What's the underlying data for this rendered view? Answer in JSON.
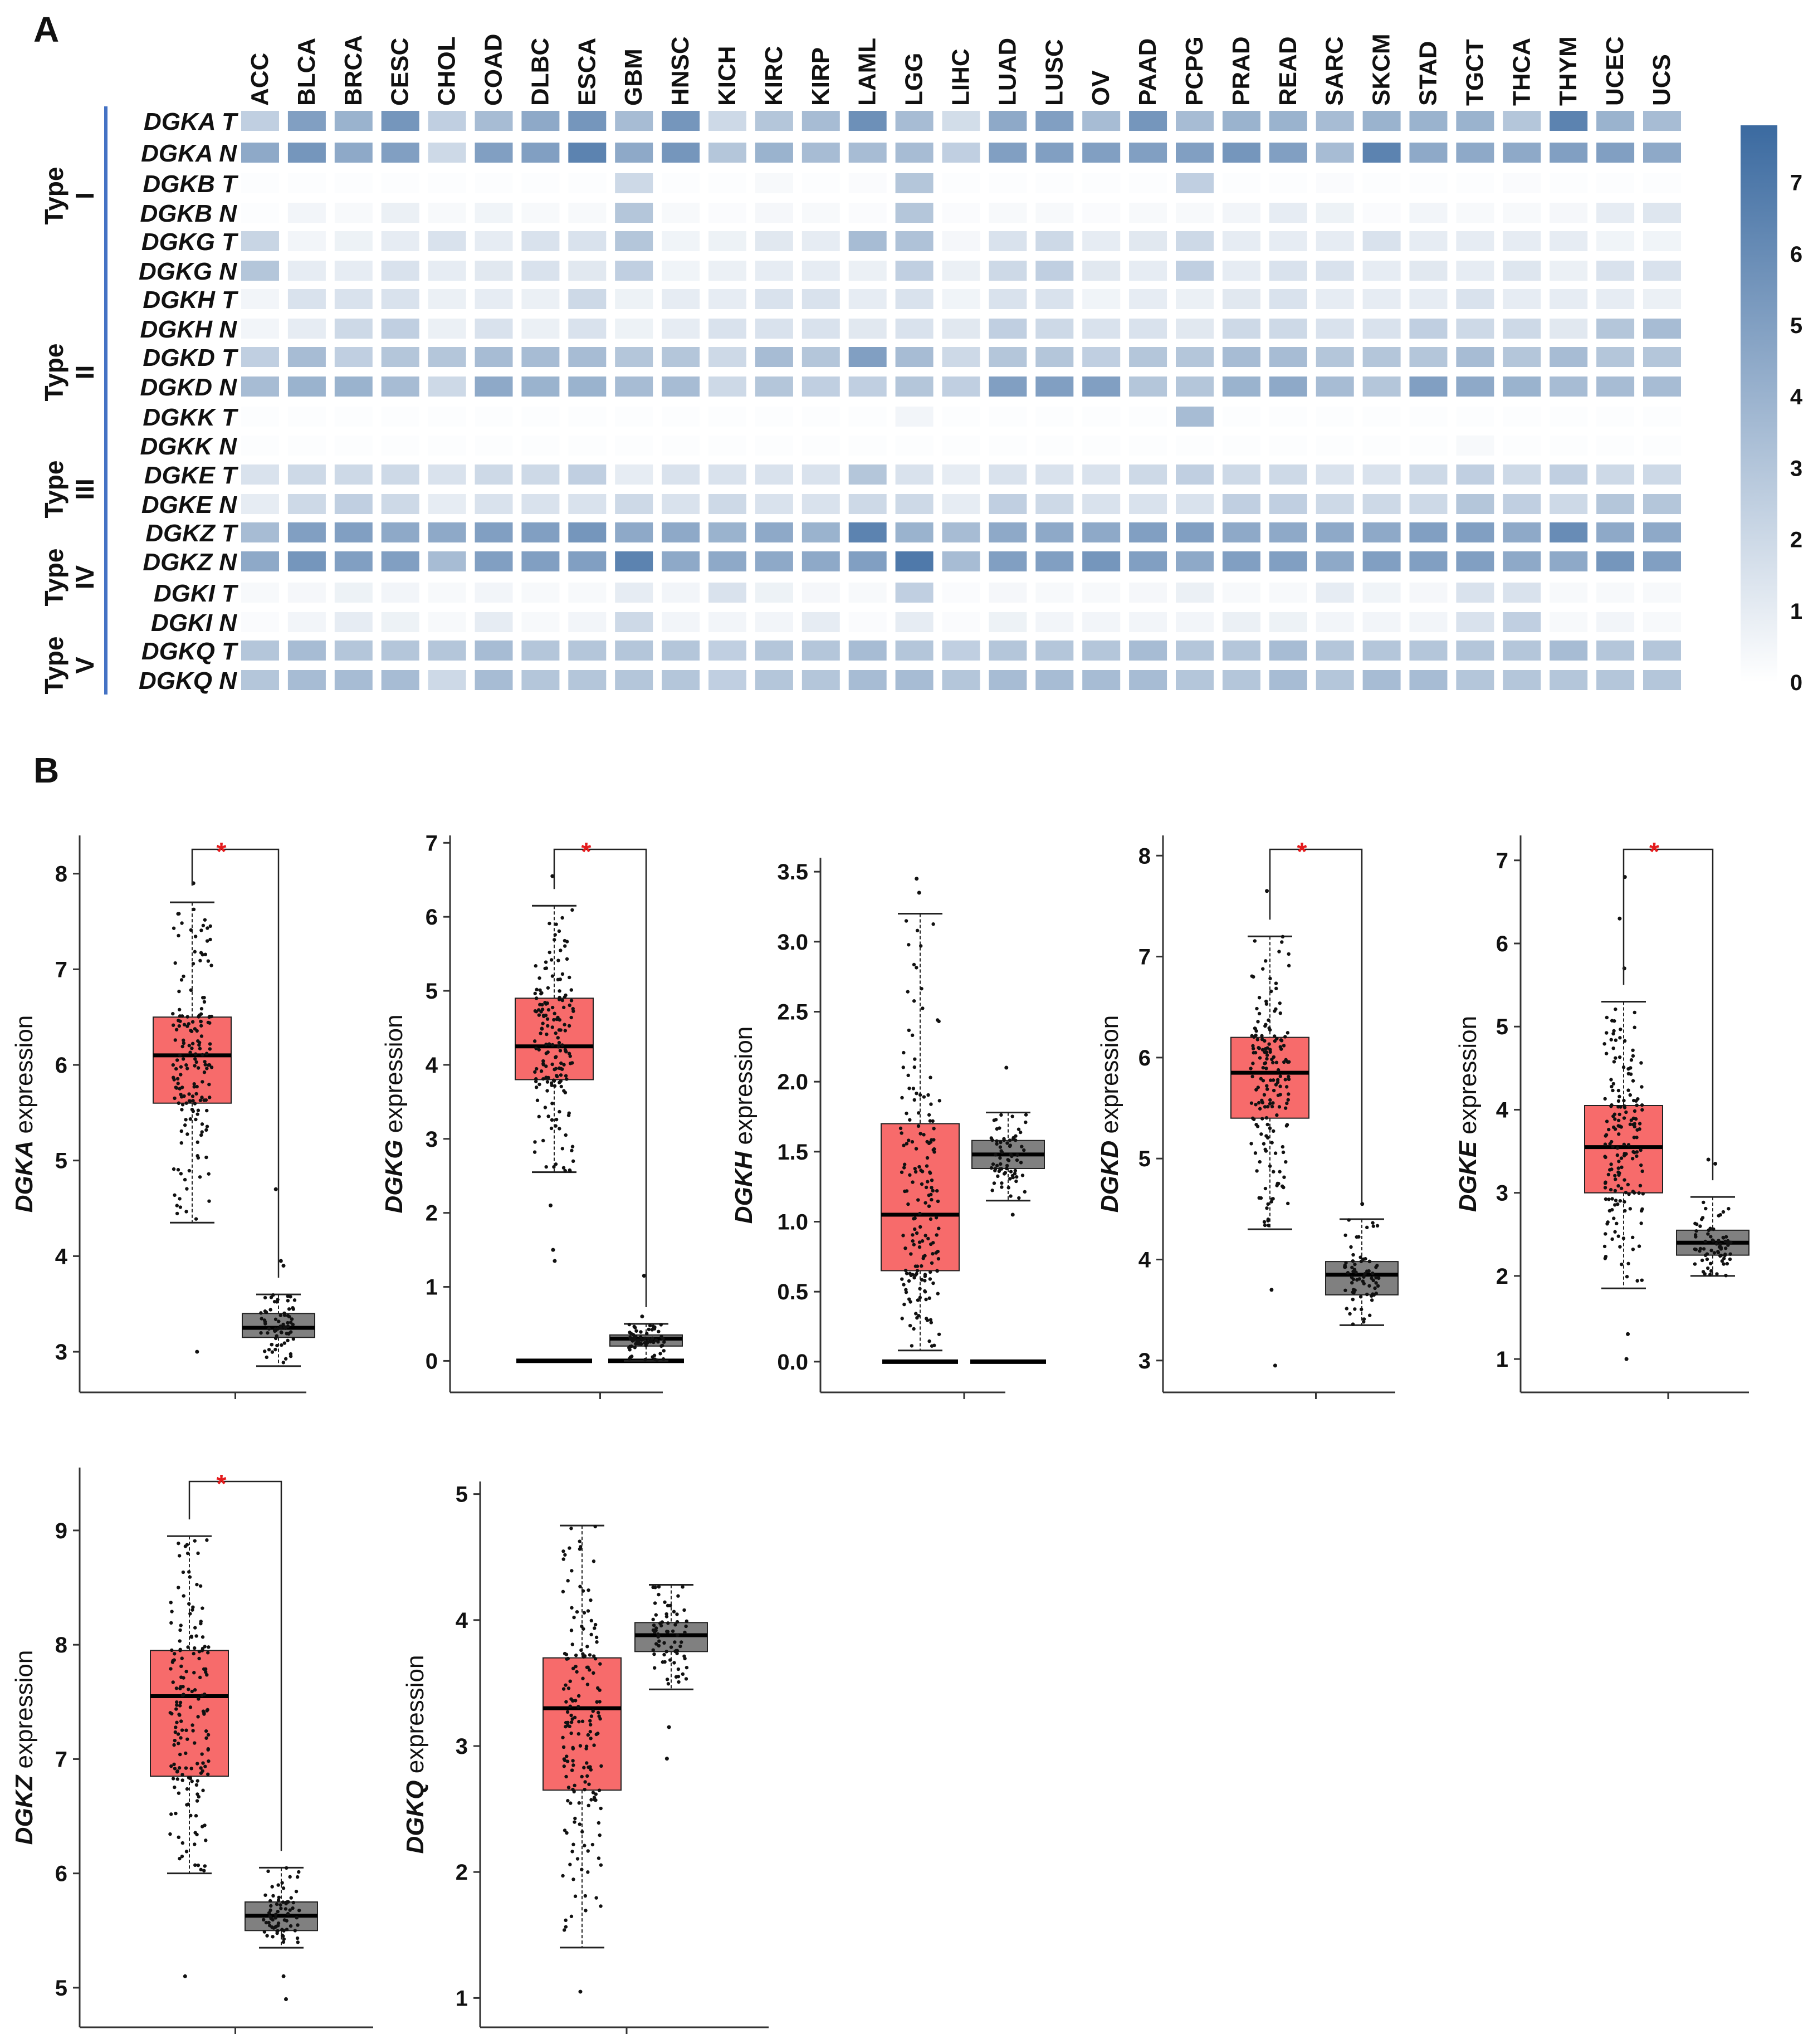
{
  "panels": {
    "a": "A",
    "b": "B"
  },
  "colors": {
    "heat_low": "#ffffff",
    "heat_high": "#3b6aa0",
    "highlight_label": "#e01010",
    "group_bar": "#4472c4",
    "tumor_box": "#f76b6b",
    "normal_box": "#808080",
    "star": "#e41a1c"
  },
  "chart_data": [
    {
      "type": "heatmap",
      "title": "",
      "columns": [
        "ACC",
        "BLCA",
        "BRCA",
        "CESC",
        "CHOL",
        "COAD",
        "DLBC",
        "ESCA",
        "GBM",
        "HNSC",
        "KICH",
        "KIRC",
        "KIRP",
        "LAML",
        "LGG",
        "LIHC",
        "LUAD",
        "LUSC",
        "OV",
        "PAAD",
        "PCPG",
        "PRAD",
        "READ",
        "SARC",
        "SKCM",
        "STAD",
        "TGCT",
        "THCA",
        "THYM",
        "UCEC",
        "UCS"
      ],
      "highlighted_column": "LAML",
      "rows": [
        "DGKA T",
        "DGKA N",
        "DGKB T",
        "DGKB N",
        "DGKG T",
        "DGKG N",
        "DGKH T",
        "DGKH N",
        "DGKD T",
        "DGKD N",
        "DGKK T",
        "DGKK N",
        "DGKE T",
        "DGKE N",
        "DGKZ T",
        "DGKZ N",
        "DGKI T",
        "DGKI N",
        "DGKQ T",
        "DGKQ N"
      ],
      "groups": [
        {
          "label": "Type",
          "numeral": "I",
          "rows": [
            "DGKA T",
            "DGKA N",
            "DGKB T",
            "DGKB N",
            "DGKG T",
            "DGKG N"
          ]
        },
        {
          "label": "Type",
          "numeral": "II",
          "rows": [
            "DGKH T",
            "DGKH N",
            "DGKD T",
            "DGKD N",
            "DGKK T",
            "DGKK N"
          ]
        },
        {
          "label": "Type",
          "numeral": "III",
          "rows": [
            "DGKE T",
            "DGKE N"
          ]
        },
        {
          "label": "Type",
          "numeral": "IV",
          "rows": [
            "DGKZ T",
            "DGKZ N",
            "DGKI T",
            "DGKI N"
          ]
        },
        {
          "label": "Type",
          "numeral": "V",
          "rows": [
            "DGKQ T",
            "DGKQ N"
          ]
        }
      ],
      "values": [
        [
          2.5,
          5.0,
          4.0,
          5.5,
          2.5,
          3.5,
          4.5,
          5.5,
          3.5,
          5.5,
          2.0,
          3.0,
          3.5,
          5.8,
          3.5,
          1.8,
          4.5,
          5.0,
          3.5,
          5.5,
          3.5,
          4.0,
          4.0,
          3.5,
          4.0,
          4.0,
          4.0,
          3.0,
          6.5,
          4.0,
          3.5
        ],
        [
          4.5,
          5.5,
          4.5,
          5.0,
          2.0,
          5.0,
          5.0,
          6.5,
          4.5,
          5.5,
          3.0,
          4.0,
          3.5,
          3.5,
          3.5,
          2.5,
          5.0,
          5.0,
          5.0,
          5.0,
          5.0,
          5.5,
          5.0,
          3.5,
          6.5,
          4.5,
          4.5,
          4.5,
          5.0,
          5.0,
          4.5
        ],
        [
          0.1,
          0.1,
          0.1,
          0.1,
          0.1,
          0.1,
          0.1,
          0.1,
          2.0,
          0.1,
          0.1,
          0.3,
          0.1,
          0.2,
          3.0,
          0.1,
          0.1,
          0.1,
          0.1,
          0.1,
          2.5,
          0.1,
          0.1,
          0.2,
          0.1,
          0.1,
          0.1,
          0.2,
          0.1,
          0.1,
          0.1
        ],
        [
          0.1,
          0.5,
          0.3,
          0.8,
          0.3,
          0.6,
          0.3,
          0.3,
          3.0,
          0.3,
          0.2,
          0.4,
          0.3,
          0.2,
          3.0,
          0.2,
          0.3,
          0.3,
          0.2,
          0.3,
          0.3,
          0.5,
          1.0,
          0.7,
          0.2,
          0.5,
          0.3,
          0.3,
          0.4,
          1.0,
          1.3
        ],
        [
          2.2,
          0.5,
          0.7,
          1.0,
          1.5,
          1.0,
          1.5,
          1.5,
          3.0,
          0.6,
          0.7,
          1.2,
          1.0,
          3.5,
          3.2,
          0.4,
          1.5,
          2.0,
          1.0,
          1.2,
          2.0,
          1.0,
          1.0,
          1.0,
          1.5,
          1.0,
          1.0,
          1.0,
          1.0,
          0.6,
          0.6
        ],
        [
          3.0,
          1.0,
          1.0,
          1.5,
          1.0,
          1.2,
          1.5,
          1.2,
          2.5,
          0.6,
          0.8,
          1.0,
          1.0,
          0.8,
          2.5,
          0.8,
          2.0,
          2.5,
          1.2,
          1.0,
          2.5,
          1.0,
          1.5,
          1.5,
          1.0,
          1.2,
          1.0,
          1.3,
          0.8,
          1.5,
          1.5
        ],
        [
          0.5,
          1.5,
          1.5,
          1.5,
          0.8,
          1.0,
          0.8,
          2.0,
          0.7,
          1.0,
          1.0,
          1.5,
          1.5,
          1.0,
          1.5,
          0.6,
          1.5,
          1.5,
          0.6,
          1.0,
          0.8,
          1.2,
          1.5,
          1.0,
          1.0,
          1.0,
          1.5,
          1.0,
          1.0,
          1.0,
          0.8
        ],
        [
          0.5,
          1.0,
          2.0,
          2.5,
          0.8,
          1.5,
          0.8,
          1.5,
          0.7,
          1.0,
          1.5,
          1.5,
          1.5,
          1.2,
          1.5,
          1.2,
          2.5,
          2.0,
          1.5,
          1.5,
          1.2,
          2.0,
          2.0,
          1.5,
          1.5,
          2.5,
          2.0,
          2.0,
          1.2,
          3.0,
          3.5
        ],
        [
          2.5,
          3.5,
          2.5,
          3.0,
          3.0,
          3.5,
          3.5,
          3.5,
          3.0,
          3.0,
          2.0,
          3.5,
          3.0,
          5.0,
          3.5,
          2.0,
          3.0,
          3.0,
          2.5,
          3.0,
          3.0,
          3.5,
          3.5,
          3.0,
          3.0,
          3.0,
          3.5,
          3.0,
          3.5,
          3.0,
          3.0
        ],
        [
          3.5,
          4.0,
          4.0,
          3.5,
          2.0,
          4.5,
          4.0,
          4.0,
          3.5,
          3.5,
          2.0,
          3.0,
          2.5,
          2.5,
          3.0,
          2.5,
          5.0,
          5.0,
          5.0,
          3.0,
          3.0,
          4.0,
          4.5,
          3.5,
          3.0,
          5.0,
          4.5,
          4.0,
          3.5,
          3.5,
          3.5
        ],
        [
          0.1,
          0.1,
          0.1,
          0.1,
          0.1,
          0.1,
          0.1,
          0.1,
          0.1,
          0.1,
          0.1,
          0.1,
          0.1,
          0.1,
          0.5,
          0.1,
          0.1,
          0.1,
          0.1,
          0.1,
          3.5,
          0.1,
          0.1,
          0.1,
          0.1,
          0.1,
          0.1,
          0.1,
          0.1,
          0.1,
          0.1
        ],
        [
          0.1,
          0.1,
          0.1,
          0.1,
          0.1,
          0.1,
          0.1,
          0.1,
          0.1,
          0.1,
          0.1,
          0.1,
          0.1,
          0.1,
          0.1,
          0.1,
          0.1,
          0.1,
          0.1,
          0.1,
          0.1,
          0.1,
          0.1,
          0.1,
          0.1,
          0.1,
          0.3,
          0.1,
          0.1,
          0.1,
          0.1
        ],
        [
          1.5,
          2.0,
          2.0,
          2.0,
          1.5,
          2.0,
          2.0,
          2.5,
          1.0,
          1.5,
          1.5,
          1.5,
          1.5,
          3.0,
          1.5,
          1.0,
          1.5,
          1.5,
          1.5,
          2.0,
          2.5,
          2.0,
          2.0,
          1.5,
          1.5,
          2.0,
          2.5,
          2.0,
          2.5,
          2.0,
          2.0
        ],
        [
          1.0,
          2.0,
          2.5,
          2.0,
          1.0,
          1.5,
          1.5,
          1.5,
          2.0,
          1.5,
          2.0,
          1.5,
          1.5,
          2.0,
          2.0,
          1.0,
          2.5,
          2.0,
          1.5,
          1.5,
          1.5,
          2.5,
          2.5,
          2.0,
          2.0,
          2.0,
          3.0,
          2.5,
          2.0,
          3.0,
          3.0
        ],
        [
          3.5,
          5.0,
          5.0,
          4.5,
          4.5,
          5.0,
          5.0,
          5.5,
          4.5,
          4.5,
          4.0,
          4.5,
          4.0,
          6.5,
          4.0,
          3.5,
          4.5,
          4.5,
          4.5,
          5.0,
          5.0,
          4.5,
          4.5,
          4.5,
          4.5,
          5.0,
          5.0,
          4.5,
          6.0,
          4.5,
          4.5
        ],
        [
          4.5,
          5.5,
          5.0,
          5.0,
          3.5,
          5.0,
          5.0,
          5.0,
          6.5,
          4.5,
          4.5,
          4.5,
          4.5,
          5.0,
          7.0,
          3.5,
          5.0,
          5.0,
          5.5,
          5.0,
          4.5,
          5.0,
          5.0,
          4.5,
          5.0,
          5.0,
          5.0,
          4.5,
          4.5,
          5.5,
          5.0
        ],
        [
          0.3,
          0.4,
          0.7,
          0.5,
          0.3,
          0.5,
          0.3,
          0.3,
          1.0,
          0.5,
          1.5,
          0.7,
          0.4,
          0.3,
          2.5,
          0.2,
          0.4,
          0.3,
          0.3,
          0.4,
          0.8,
          0.3,
          0.3,
          1.0,
          0.6,
          0.4,
          1.5,
          1.5,
          0.3,
          0.3,
          0.3
        ],
        [
          0.2,
          0.5,
          1.0,
          0.7,
          0.3,
          1.0,
          0.3,
          0.5,
          2.0,
          0.5,
          0.5,
          0.5,
          1.0,
          0.2,
          1.0,
          0.2,
          0.7,
          0.5,
          0.5,
          0.5,
          0.5,
          0.8,
          0.7,
          0.5,
          0.5,
          0.5,
          1.5,
          2.5,
          0.3,
          0.5,
          0.3
        ],
        [
          3.0,
          3.5,
          3.0,
          3.0,
          3.0,
          3.5,
          3.0,
          3.0,
          3.0,
          3.0,
          2.5,
          3.0,
          3.0,
          3.5,
          3.0,
          2.5,
          3.0,
          3.0,
          3.0,
          3.5,
          3.0,
          3.0,
          3.5,
          3.0,
          3.0,
          3.0,
          3.0,
          3.0,
          3.5,
          3.0,
          3.0
        ],
        [
          3.0,
          3.5,
          3.5,
          3.5,
          2.0,
          3.5,
          3.0,
          3.0,
          3.0,
          3.0,
          2.5,
          3.0,
          3.0,
          3.5,
          3.5,
          3.0,
          3.5,
          3.5,
          3.5,
          3.5,
          3.0,
          3.0,
          3.5,
          3.0,
          3.5,
          3.5,
          3.0,
          3.0,
          3.0,
          3.0,
          3.0
        ]
      ],
      "colorbar": {
        "range": [
          0,
          7.8
        ],
        "ticks": [
          0,
          1,
          2,
          3,
          4,
          5,
          6,
          7
        ]
      }
    },
    {
      "type": "box",
      "title": "DGKA",
      "ylabel_gene": "DGKA",
      "ylabel_suffix": " expression",
      "ylim": [
        2.75,
        8.4
      ],
      "yticks": [
        3,
        4,
        5,
        6,
        7,
        8
      ],
      "significant": true,
      "star": "*",
      "series": [
        {
          "name": "Tumor",
          "q1": 5.6,
          "median": 6.1,
          "q3": 6.5,
          "whisker_low": 4.35,
          "whisker_high": 7.7,
          "outliers": [
            3.0,
            7.9
          ]
        },
        {
          "name": "Normal",
          "q1": 3.15,
          "median": 3.25,
          "q3": 3.4,
          "whisker_low": 2.85,
          "whisker_high": 3.6,
          "outliers": [
            3.9,
            3.95,
            4.7
          ]
        }
      ]
    },
    {
      "type": "box",
      "title": "DGKG",
      "ylabel_gene": "DGKG",
      "ylabel_suffix": " expression",
      "ylim": [
        -0.2,
        7.1
      ],
      "yticks": [
        0,
        1,
        2,
        3,
        4,
        5,
        6,
        7
      ],
      "significant": true,
      "star": "*",
      "series": [
        {
          "name": "Tumor",
          "q1": 3.8,
          "median": 4.25,
          "q3": 4.9,
          "whisker_low": 2.55,
          "whisker_high": 6.15,
          "outliers": [
            2.1,
            1.5,
            1.35,
            6.55
          ]
        },
        {
          "name": "Normal",
          "q1": 0.2,
          "median": 0.3,
          "q3": 0.35,
          "whisker_low": 0.0,
          "whisker_high": 0.5,
          "outliers": [
            0.6,
            1.15
          ]
        }
      ],
      "zero_bars": [
        {
          "series": "Tumor",
          "value": 0.0
        },
        {
          "series": "Normal",
          "value": 0.0
        }
      ]
    },
    {
      "type": "box",
      "title": "DGKH",
      "ylabel_gene": "DGKH",
      "ylabel_suffix": " expression",
      "ylim": [
        -0.1,
        3.6
      ],
      "yticks_labels": [
        "0.0",
        "0.5",
        "1.0",
        "1.5",
        "2.0",
        "2.5",
        "3.0",
        "3.5"
      ],
      "yticks": [
        0,
        0.5,
        1,
        1.5,
        2,
        2.5,
        3,
        3.5
      ],
      "significant": false,
      "series": [
        {
          "name": "Tumor",
          "q1": 0.65,
          "median": 1.05,
          "q3": 1.7,
          "whisker_low": 0.08,
          "whisker_high": 3.2,
          "outliers": [
            3.35,
            3.45
          ]
        },
        {
          "name": "Normal",
          "q1": 1.38,
          "median": 1.48,
          "q3": 1.58,
          "whisker_low": 1.15,
          "whisker_high": 1.78,
          "outliers": [
            2.1,
            1.05
          ]
        }
      ],
      "zero_bars": [
        {
          "series": "Tumor",
          "value": 0.0
        },
        {
          "series": "Normal",
          "value": 0.0
        }
      ]
    },
    {
      "type": "box",
      "title": "DGKD",
      "ylabel_gene": "DGKD",
      "ylabel_suffix": " expression",
      "ylim": [
        2.85,
        8.2
      ],
      "yticks": [
        3,
        4,
        5,
        6,
        7,
        8
      ],
      "significant": true,
      "star": "*",
      "series": [
        {
          "name": "Tumor",
          "q1": 5.4,
          "median": 5.85,
          "q3": 6.2,
          "whisker_low": 4.3,
          "whisker_high": 7.2,
          "outliers": [
            3.7,
            2.95,
            7.65
          ]
        },
        {
          "name": "Normal",
          "q1": 3.65,
          "median": 3.85,
          "q3": 3.98,
          "whisker_low": 3.35,
          "whisker_high": 4.4,
          "outliers": [
            4.55
          ]
        }
      ]
    },
    {
      "type": "box",
      "title": "DGKE",
      "ylabel_gene": "DGKE",
      "ylabel_suffix": " expression",
      "ylim": [
        0.8,
        7.3
      ],
      "yticks": [
        1,
        2,
        3,
        4,
        5,
        6,
        7
      ],
      "significant": true,
      "star": "*",
      "series": [
        {
          "name": "Tumor",
          "q1": 3.0,
          "median": 3.55,
          "q3": 4.05,
          "whisker_low": 1.85,
          "whisker_high": 5.3,
          "outliers": [
            1.3,
            1.0,
            5.7,
            6.3,
            6.8
          ]
        },
        {
          "name": "Normal",
          "q1": 2.25,
          "median": 2.4,
          "q3": 2.55,
          "whisker_low": 2.0,
          "whisker_high": 2.95,
          "outliers": [
            3.35,
            3.4
          ]
        }
      ]
    },
    {
      "type": "box",
      "title": "DGKZ",
      "ylabel_gene": "DGKZ",
      "ylabel_suffix": " expression",
      "ylim": [
        4.8,
        9.55
      ],
      "yticks": [
        5,
        6,
        7,
        8,
        9
      ],
      "significant": true,
      "star": "*",
      "series": [
        {
          "name": "Tumor",
          "q1": 6.85,
          "median": 7.55,
          "q3": 7.95,
          "whisker_low": 6.0,
          "whisker_high": 8.95,
          "outliers": [
            5.1
          ]
        },
        {
          "name": "Normal",
          "q1": 5.5,
          "median": 5.63,
          "q3": 5.75,
          "whisker_low": 5.35,
          "whisker_high": 6.05,
          "outliers": [
            4.9,
            5.1
          ]
        }
      ]
    },
    {
      "type": "box",
      "title": "DGKQ",
      "ylabel_gene": "DGKQ",
      "ylabel_suffix": " expression",
      "ylim": [
        0.9,
        5.1
      ],
      "yticks": [
        1,
        2,
        3,
        4,
        5
      ],
      "significant": false,
      "series": [
        {
          "name": "Tumor",
          "q1": 2.65,
          "median": 3.3,
          "q3": 3.7,
          "whisker_low": 1.4,
          "whisker_high": 4.75,
          "outliers": [
            1.05
          ]
        },
        {
          "name": "Normal",
          "q1": 3.75,
          "median": 3.88,
          "q3": 3.98,
          "whisker_low": 3.45,
          "whisker_high": 4.28,
          "outliers": [
            2.9,
            3.15
          ]
        }
      ]
    }
  ]
}
